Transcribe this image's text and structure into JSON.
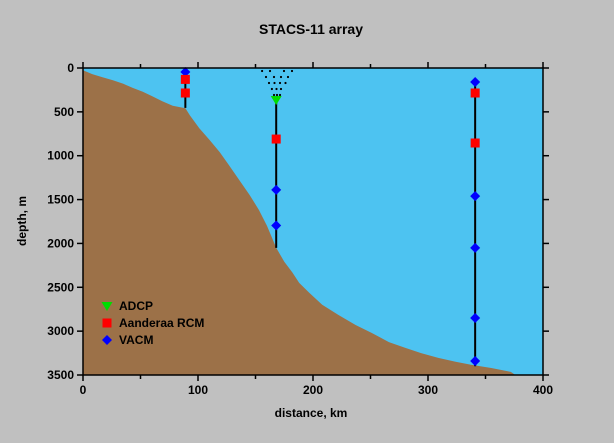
{
  "window": {
    "background": "#c0c0c0"
  },
  "colors": {
    "background": "#c0c0c0",
    "water": "#4dc3f1",
    "land": "#9c7148",
    "frame": "#000000",
    "mooring_line": "#000000",
    "adcp": "#00dd00",
    "rcm": "#ff0000",
    "vacm": "#0000ff",
    "text": "#000000"
  },
  "chart_data": {
    "type": "scatter",
    "title": "STACS-11 array",
    "xlabel": "distance, km",
    "ylabel": "depth, m",
    "xlim": [
      0,
      400
    ],
    "ylim": [
      0,
      3500
    ],
    "depth_axis_increases_downward": true,
    "grid": false,
    "xticks_major": [
      0,
      100,
      200,
      300,
      400
    ],
    "xticks_minor": [
      50,
      150,
      250,
      350
    ],
    "yticks_major": [
      0,
      500,
      1000,
      1500,
      2000,
      2500,
      3000,
      3500
    ],
    "legend": {
      "position": "lower-left-on-land",
      "items": [
        {
          "label": "ADCP",
          "marker": "triangle-down",
          "color": "#00dd00"
        },
        {
          "label": "Aanderaa RCM",
          "marker": "square",
          "color": "#ff0000"
        },
        {
          "label": "VACM",
          "marker": "diamond",
          "color": "#0000ff"
        }
      ]
    },
    "moorings": [
      {
        "distance_km": 89,
        "top_depth_m": 45,
        "bottom_depth_m": 455,
        "instruments": [
          {
            "type": "VACM",
            "depth_m": 45
          },
          {
            "type": "Aanderaa RCM",
            "depth_m": 130
          },
          {
            "type": "Aanderaa RCM",
            "depth_m": 285
          }
        ]
      },
      {
        "distance_km": 168,
        "top_depth_m": 360,
        "bottom_depth_m": 2050,
        "instruments": [
          {
            "type": "ADCP",
            "depth_m": 365
          },
          {
            "type": "Aanderaa RCM",
            "depth_m": 810
          },
          {
            "type": "VACM",
            "depth_m": 1390
          },
          {
            "type": "VACM",
            "depth_m": 1795
          }
        ]
      },
      {
        "distance_km": 341,
        "top_depth_m": 160,
        "bottom_depth_m": 3400,
        "instruments": [
          {
            "type": "VACM",
            "depth_m": 160
          },
          {
            "type": "Aanderaa RCM",
            "depth_m": 285
          },
          {
            "type": "Aanderaa RCM",
            "depth_m": 855
          },
          {
            "type": "VACM",
            "depth_m": 1460
          },
          {
            "type": "VACM",
            "depth_m": 2050
          },
          {
            "type": "VACM",
            "depth_m": 2850
          },
          {
            "type": "VACM",
            "depth_m": 3340
          }
        ]
      }
    ],
    "adcp_beam_dots_km_m": [
      [
        155.7,
        34
      ],
      [
        162.6,
        34
      ],
      [
        174.8,
        34
      ],
      [
        181.7,
        34
      ],
      [
        159.1,
        103
      ],
      [
        166.1,
        103
      ],
      [
        172.2,
        103
      ],
      [
        178.3,
        103
      ],
      [
        161.7,
        171
      ],
      [
        166.5,
        171
      ],
      [
        171.3,
        171
      ],
      [
        176.1,
        171
      ],
      [
        164.3,
        239
      ],
      [
        168.3,
        239
      ],
      [
        172.2,
        239
      ],
      [
        166.1,
        308
      ],
      [
        168.7,
        308
      ],
      [
        171.3,
        308
      ]
    ],
    "bathymetry_km_m": [
      [
        0,
        25
      ],
      [
        8,
        70
      ],
      [
        17,
        105
      ],
      [
        26,
        140
      ],
      [
        35,
        180
      ],
      [
        43,
        225
      ],
      [
        52,
        270
      ],
      [
        60,
        320
      ],
      [
        69,
        380
      ],
      [
        78,
        430
      ],
      [
        89,
        460
      ],
      [
        93,
        540
      ],
      [
        101,
        685
      ],
      [
        110,
        820
      ],
      [
        119,
        960
      ],
      [
        127,
        1110
      ],
      [
        136,
        1280
      ],
      [
        145,
        1450
      ],
      [
        153,
        1620
      ],
      [
        160,
        1800
      ],
      [
        168,
        2050
      ],
      [
        175,
        2210
      ],
      [
        182,
        2330
      ],
      [
        188,
        2450
      ],
      [
        197,
        2565
      ],
      [
        208,
        2700
      ],
      [
        222,
        2815
      ],
      [
        237,
        2930
      ],
      [
        251,
        3020
      ],
      [
        266,
        3125
      ],
      [
        280,
        3190
      ],
      [
        294,
        3250
      ],
      [
        309,
        3305
      ],
      [
        324,
        3350
      ],
      [
        338,
        3385
      ],
      [
        355,
        3420
      ],
      [
        372,
        3465
      ],
      [
        376,
        3500
      ]
    ]
  }
}
